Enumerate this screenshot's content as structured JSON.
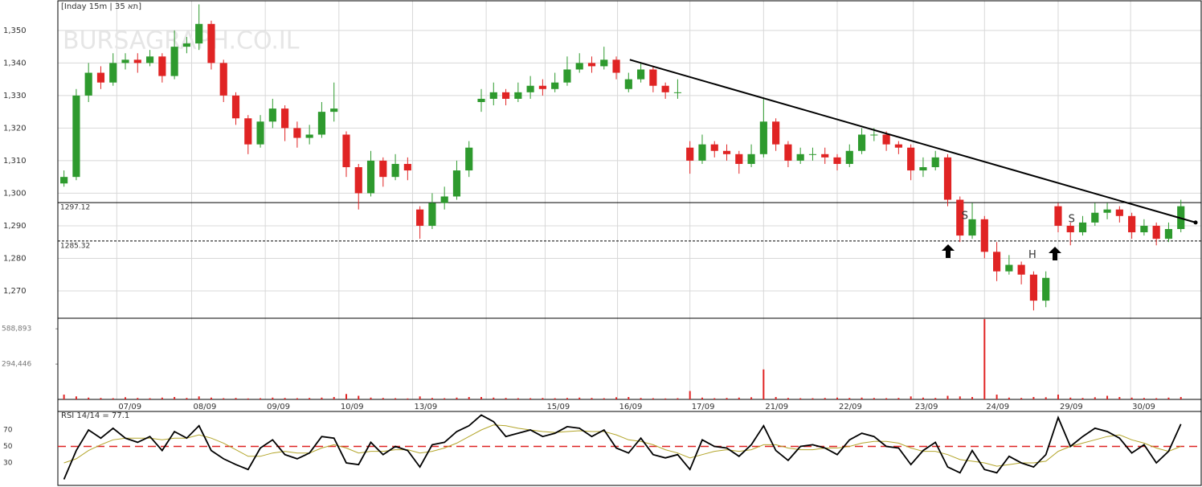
{
  "chart_data": {
    "type": "candlestick",
    "header": "[Inday 15m | 35 תא]",
    "watermark": "BURSAGRAPH.CO.IL",
    "xlim": [
      -0.5,
      92
    ],
    "ylim": [
      1261.6,
      1359.1
    ],
    "yticks": [
      {
        "value": 1350,
        "label": "1,350"
      },
      {
        "value": 1340,
        "label": "1,340"
      },
      {
        "value": 1330,
        "label": "1,330"
      },
      {
        "value": 1320,
        "label": "1,320"
      },
      {
        "value": 1310,
        "label": "1,310"
      },
      {
        "value": 1300,
        "label": "1,300"
      },
      {
        "value": 1290,
        "label": "1,290"
      },
      {
        "value": 1280,
        "label": "1,280"
      },
      {
        "value": 1270,
        "label": "1,270"
      }
    ],
    "xticks": [
      {
        "value": 4.3,
        "label": "07/09"
      },
      {
        "value": 10.4,
        "label": "08/09"
      },
      {
        "value": 16.4,
        "label": "09/09"
      },
      {
        "value": 22.4,
        "label": "10/09"
      },
      {
        "value": 28.4,
        "label": "13/09"
      },
      {
        "value": 34.4,
        "label": null
      },
      {
        "value": 39.2,
        "label": "15/09"
      },
      {
        "value": 45.1,
        "label": "16/09"
      },
      {
        "value": 51,
        "label": "17/09"
      },
      {
        "value": 57,
        "label": "21/09"
      },
      {
        "value": 63,
        "label": "22/09"
      },
      {
        "value": 69.2,
        "label": "23/09"
      },
      {
        "value": 75,
        "label": "24/09"
      },
      {
        "value": 81,
        "label": "29/09"
      },
      {
        "value": 86.9,
        "label": "30/09"
      }
    ],
    "grid": true,
    "up_color": "#2e9a2e",
    "down_color": "#e02424",
    "ohlc": [
      [
        1303,
        1307,
        1302,
        1305
      ],
      [
        1305,
        1332,
        1304,
        1330
      ],
      [
        1330,
        1340,
        1328,
        1337
      ],
      [
        1337,
        1339,
        1332,
        1334
      ],
      [
        1334,
        1343,
        1333,
        1340
      ],
      [
        1340,
        1343,
        1338,
        1341
      ],
      [
        1341,
        1343,
        1337,
        1340
      ],
      [
        1340,
        1344,
        1339,
        1342
      ],
      [
        1342,
        1343,
        1334,
        1336
      ],
      [
        1336,
        1350,
        1335,
        1345
      ],
      [
        1345,
        1348,
        1343,
        1346
      ],
      [
        1346,
        1358,
        1344,
        1352
      ],
      [
        1352,
        1353,
        1338,
        1340
      ],
      [
        1340,
        1341,
        1328,
        1330
      ],
      [
        1330,
        1331,
        1321,
        1323
      ],
      [
        1323,
        1324,
        1312,
        1315
      ],
      [
        1315,
        1324,
        1314,
        1322
      ],
      [
        1322,
        1329,
        1320,
        1326
      ],
      [
        1326,
        1327,
        1316,
        1320
      ],
      [
        1320,
        1322,
        1314,
        1317
      ],
      [
        1317,
        1321,
        1315,
        1318
      ],
      [
        1318,
        1328,
        1317,
        1325
      ],
      [
        1325,
        1334,
        1322,
        1326
      ],
      [
        1318,
        1319,
        1305,
        1308
      ],
      [
        1308,
        1309,
        1295,
        1300
      ],
      [
        1300,
        1313,
        1299,
        1310
      ],
      [
        1310,
        1311,
        1302,
        1305
      ],
      [
        1305,
        1312,
        1304,
        1309
      ],
      [
        1309,
        1311,
        1304,
        1307
      ],
      [
        1295,
        1296,
        1286,
        1290
      ],
      [
        1290,
        1300,
        1289,
        1297
      ],
      [
        1297,
        1302,
        1295,
        1299
      ],
      [
        1299,
        1310,
        1298,
        1307
      ],
      [
        1307,
        1316,
        1305,
        1314
      ],
      [
        1328,
        1332,
        1325,
        1329
      ],
      [
        1329,
        1334,
        1327,
        1331
      ],
      [
        1331,
        1332,
        1327,
        1329
      ],
      [
        1329,
        1334,
        1328,
        1331
      ],
      [
        1331,
        1336,
        1329,
        1333
      ],
      [
        1333,
        1335,
        1330,
        1332
      ],
      [
        1332,
        1337,
        1331,
        1334
      ],
      [
        1334,
        1342,
        1333,
        1338
      ],
      [
        1338,
        1343,
        1337,
        1340
      ],
      [
        1340,
        1342,
        1337,
        1339
      ],
      [
        1339,
        1345,
        1338,
        1341
      ],
      [
        1341,
        1342,
        1335,
        1337
      ],
      [
        1332,
        1337,
        1331,
        1335
      ],
      [
        1335,
        1340,
        1334,
        1338
      ],
      [
        1338,
        1339,
        1331,
        1333
      ],
      [
        1333,
        1334,
        1329,
        1331
      ],
      [
        1331,
        1335,
        1329,
        1331
      ],
      [
        1314,
        1316,
        1306,
        1310
      ],
      [
        1310,
        1318,
        1309,
        1315
      ],
      [
        1315,
        1316,
        1311,
        1313
      ],
      [
        1313,
        1315,
        1310,
        1312
      ],
      [
        1312,
        1313,
        1306,
        1309
      ],
      [
        1309,
        1315,
        1308,
        1312
      ],
      [
        1312,
        1329,
        1311,
        1322
      ],
      [
        1322,
        1323,
        1313,
        1315
      ],
      [
        1315,
        1316,
        1308,
        1310
      ],
      [
        1310,
        1314,
        1309,
        1312
      ],
      [
        1312,
        1314,
        1310,
        1312
      ],
      [
        1312,
        1314,
        1309,
        1311
      ],
      [
        1311,
        1312,
        1307,
        1309
      ],
      [
        1309,
        1315,
        1308,
        1313
      ],
      [
        1313,
        1320,
        1312,
        1318
      ],
      [
        1318,
        1320,
        1316,
        1318
      ],
      [
        1318,
        1319,
        1313,
        1315
      ],
      [
        1315,
        1316,
        1312,
        1314
      ],
      [
        1314,
        1315,
        1304,
        1307
      ],
      [
        1307,
        1311,
        1305,
        1308
      ],
      [
        1308,
        1313,
        1307,
        1311
      ],
      [
        1311,
        1312,
        1296,
        1298
      ],
      [
        1298,
        1299,
        1285,
        1287
      ],
      [
        1287,
        1297,
        1286,
        1292
      ],
      [
        1292,
        1293,
        1280,
        1282
      ],
      [
        1282,
        1285,
        1273,
        1276
      ],
      [
        1276,
        1281,
        1275,
        1278
      ],
      [
        1278,
        1279,
        1272,
        1275
      ],
      [
        1275,
        1276,
        1264,
        1267
      ],
      [
        1267,
        1276,
        1265,
        1274
      ],
      [
        1296,
        1297,
        1288,
        1290
      ],
      [
        1290,
        1291,
        1284,
        1288
      ],
      [
        1288,
        1293,
        1287,
        1291
      ],
      [
        1291,
        1297,
        1290,
        1294
      ],
      [
        1294,
        1297,
        1292,
        1295
      ],
      [
        1295,
        1296,
        1291,
        1293
      ],
      [
        1293,
        1294,
        1286,
        1288
      ],
      [
        1288,
        1292,
        1287,
        1290
      ],
      [
        1290,
        1291,
        1284,
        1286
      ],
      [
        1286,
        1291,
        1285,
        1289
      ],
      [
        1289,
        1298,
        1288,
        1296
      ]
    ],
    "levels": [
      {
        "value": 1297.12,
        "dashed": false
      },
      {
        "value": 1285.32,
        "dashed": true
      }
    ],
    "trendline": {
      "x": [
        46.1,
        92.2
      ],
      "y": [
        1341,
        1291
      ]
    },
    "annotations": [
      {
        "text": "S",
        "x": 73.4,
        "y": 1293
      },
      {
        "text": "H",
        "x": 78.9,
        "y": 1281
      },
      {
        "text": "S",
        "x": 82.1,
        "y": 1292
      }
    ],
    "volume": {
      "color": "#e02424",
      "ylim": [
        0,
        677227
      ],
      "yticks": [
        {
          "value": 588893,
          "label": "588,893"
        },
        {
          "value": 294446,
          "label": "294,446"
        }
      ],
      "values": [
        40000,
        25000,
        15000,
        12000,
        10000,
        18000,
        12000,
        10000,
        15000,
        20000,
        12000,
        25000,
        15000,
        10000,
        12000,
        8000,
        10000,
        15000,
        12000,
        10000,
        12000,
        15000,
        20000,
        45000,
        30000,
        15000,
        12000,
        10000,
        8000,
        25000,
        12000,
        10000,
        15000,
        20000,
        20000,
        15000,
        12000,
        10000,
        10000,
        12000,
        10000,
        12000,
        15000,
        12000,
        10000,
        18000,
        20000,
        12000,
        10000,
        8000,
        10000,
        70000,
        15000,
        10000,
        12000,
        15000,
        18000,
        250000,
        20000,
        12000,
        10000,
        10000,
        12000,
        15000,
        12000,
        15000,
        12000,
        10000,
        12000,
        25000,
        15000,
        12000,
        30000,
        25000,
        20000,
        670000,
        40000,
        15000,
        12000,
        20000,
        18000,
        40000,
        15000,
        12000,
        18000,
        30000,
        20000,
        15000,
        12000,
        10000,
        15000,
        20000
      ]
    },
    "rsi": {
      "label": "RSI 14/14 = 77.1",
      "ylim": [
        2.7,
        92.4
      ],
      "yticks": [
        70,
        50,
        30
      ],
      "refline": 50,
      "color": "#000000",
      "signal_color": "#b3a52a",
      "values": [
        10,
        45,
        70,
        60,
        72,
        60,
        55,
        62,
        45,
        68,
        60,
        75,
        45,
        35,
        28,
        22,
        48,
        58,
        40,
        35,
        42,
        62,
        60,
        30,
        28,
        55,
        40,
        50,
        45,
        25,
        52,
        55,
        68,
        75,
        88,
        80,
        62,
        66,
        70,
        62,
        66,
        74,
        72,
        62,
        70,
        48,
        42,
        60,
        40,
        36,
        40,
        22,
        58,
        50,
        48,
        38,
        52,
        75,
        45,
        33,
        50,
        52,
        48,
        40,
        58,
        66,
        62,
        50,
        48,
        28,
        45,
        55,
        25,
        18,
        45,
        22,
        18,
        38,
        30,
        25,
        40,
        85,
        50,
        62,
        72,
        68,
        60,
        42,
        52,
        30,
        44,
        77.1
      ],
      "signal": [
        30,
        35,
        45,
        52,
        58,
        60,
        60,
        60,
        58,
        60,
        60,
        64,
        60,
        54,
        46,
        38,
        38,
        42,
        44,
        42,
        42,
        48,
        52,
        48,
        42,
        44,
        44,
        46,
        46,
        42,
        44,
        48,
        54,
        62,
        70,
        76,
        75,
        72,
        70,
        68,
        67,
        68,
        69,
        68,
        68,
        64,
        58,
        56,
        52,
        46,
        42,
        36,
        40,
        44,
        46,
        44,
        46,
        52,
        52,
        48,
        46,
        46,
        48,
        48,
        50,
        54,
        56,
        56,
        54,
        48,
        44,
        44,
        40,
        34,
        32,
        30,
        26,
        28,
        30,
        30,
        32,
        44,
        50,
        54,
        58,
        62,
        64,
        58,
        54,
        48,
        44,
        50
      ]
    }
  }
}
